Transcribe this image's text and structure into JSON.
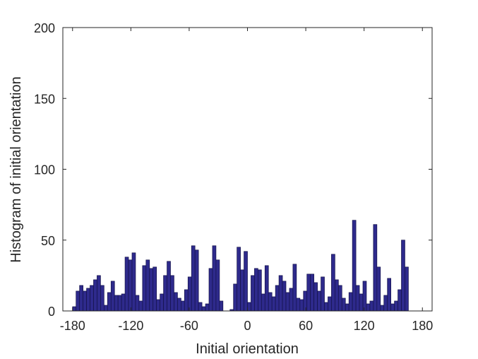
{
  "chart_data": {
    "type": "bar",
    "title": "",
    "xlabel": "Initial orientation",
    "ylabel": "Histogram of initial orientation",
    "xlim": [
      -190,
      190
    ],
    "ylim": [
      0,
      200
    ],
    "xticks": [
      -180,
      -120,
      -60,
      0,
      60,
      120,
      180
    ],
    "xtick_labels": [
      "-180",
      "-120",
      "-60",
      "0",
      "60",
      "120",
      "180"
    ],
    "yticks": [
      0,
      50,
      100,
      150,
      200
    ],
    "ytick_labels": [
      "0",
      "50",
      "100",
      "150",
      "200"
    ],
    "bin_width": 3.6,
    "bin_start": -180,
    "values": [
      3,
      14,
      18,
      14,
      16,
      18,
      22,
      25,
      18,
      4,
      13,
      21,
      11,
      11,
      12,
      38,
      36,
      41,
      11,
      7,
      32,
      36,
      30,
      31,
      8,
      12,
      25,
      35,
      25,
      13,
      9,
      7,
      15,
      24,
      46,
      43,
      6,
      3,
      5,
      30,
      46,
      36,
      7,
      0,
      0,
      1,
      19,
      45,
      29,
      42,
      6,
      25,
      30,
      29,
      12,
      32,
      13,
      10,
      18,
      25,
      21,
      13,
      16,
      33,
      9,
      8,
      14,
      26,
      26,
      20,
      14,
      24,
      6,
      10,
      40,
      22,
      18,
      9,
      5,
      13,
      64,
      18,
      12,
      21,
      5,
      7,
      61,
      31,
      4,
      11,
      23,
      5,
      7,
      15,
      50,
      31
    ],
    "bar_color": "#2e2a8c",
    "grid": false,
    "legend": "none"
  }
}
